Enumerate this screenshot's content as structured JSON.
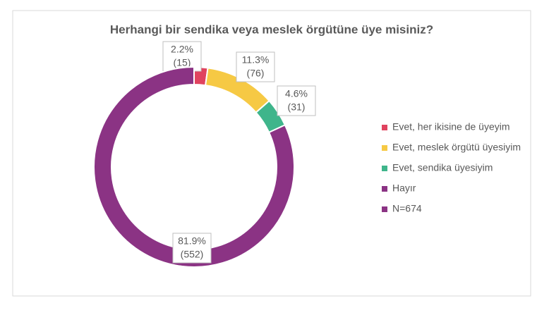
{
  "chart_data": {
    "type": "donut",
    "title": "Herhangi bir sendika veya meslek örgütüne üye misiniz?",
    "categories": [
      "Evet, her ikisine de üyeyim",
      "Evet, meslek örgütü üyesiyim",
      "Evet, sendika üyesiyim",
      "Hayır"
    ],
    "values": [
      2.2,
      11.3,
      4.6,
      81.9
    ],
    "value_labels": [
      "2.2%",
      "11.3%",
      "4.6%",
      "81.9%"
    ],
    "count_labels": [
      "(15)",
      "(76)",
      "(31)",
      "(552)"
    ],
    "colors": [
      "#e0435f",
      "#f6c944",
      "#3fb58b",
      "#8b3384"
    ],
    "legend_note": "N=674",
    "legend_note_color": "#8b3384",
    "legend": "right"
  }
}
